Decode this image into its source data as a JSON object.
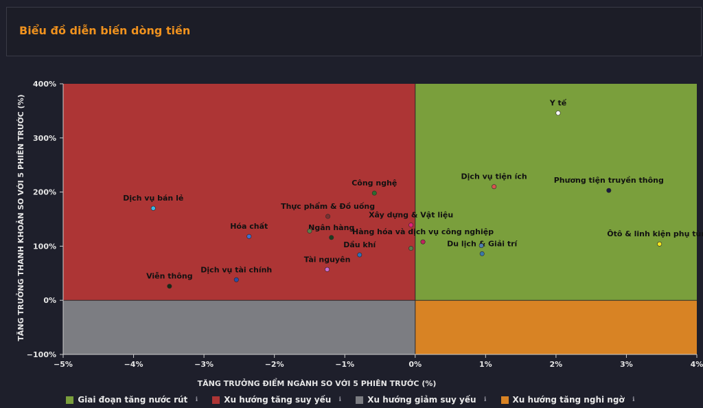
{
  "header": {
    "title": "Biểu đồ diễn biến dòng tiền"
  },
  "chart_data": {
    "type": "scatter",
    "xlabel": "TĂNG TRƯỞNG ĐIỂM NGÀNH SO VỚI 5 PHIÊN TRƯỚC (%)",
    "ylabel": "TĂNG TRƯỞNG THANH KHOẢN SO VỚI 5 PHIÊN TRƯỚC (%)",
    "xlim": [
      -5,
      4
    ],
    "ylim": [
      -100,
      400
    ],
    "x_ticks": [
      -5,
      -4,
      -3,
      -2,
      -1,
      0,
      1,
      2,
      3,
      4
    ],
    "x_tick_labels": [
      "−5%",
      "−4%",
      "−3%",
      "−2%",
      "−1%",
      "0%",
      "1%",
      "2%",
      "3%",
      "4%"
    ],
    "y_ticks": [
      -100,
      0,
      100,
      200,
      300,
      400
    ],
    "y_tick_labels": [
      "−100%",
      "0%",
      "100%",
      "200%",
      "300%",
      "400%"
    ],
    "quadrants": {
      "top_right": "#7a9f3c",
      "top_left": "#ad3535",
      "bottom_left": "#7c7d82",
      "bottom_right": "#d88324"
    },
    "points": [
      {
        "label": "Y tế",
        "x": 2.03,
        "y": 346,
        "color": "#ffffff"
      },
      {
        "label": "Dịch vụ tiện ích",
        "x": 1.12,
        "y": 210,
        "color": "#d9534f"
      },
      {
        "label": "Phương tiện truyền thông",
        "x": 2.75,
        "y": 203,
        "color": "#1a1a40"
      },
      {
        "label": "Ôtô & linh kiện phụ tùng",
        "x": 3.47,
        "y": 104,
        "color": "#f5e61e"
      },
      {
        "label": "Du lịch & Giải trí",
        "x": 0.95,
        "y": 86,
        "color": "#3a78a8"
      },
      {
        "label": "Công nghệ",
        "x": -0.58,
        "y": 198,
        "color": "#2e6b2e"
      },
      {
        "label": "Xây dựng & Vật liệu",
        "x": -0.06,
        "y": 139,
        "color": "#e0237a"
      },
      {
        "label": "Hàng hóa và dịch vụ công nghiệp",
        "x": 0.11,
        "y": 108,
        "color": "#c0245c"
      },
      {
        "label": "Thực phẩm & Đồ uống",
        "x": -1.24,
        "y": 155,
        "color": "#7a3030"
      },
      {
        "label": "Ngân hàng",
        "x": -1.19,
        "y": 116,
        "color": "#1f3d1f"
      },
      {
        "label": "Dầu khí",
        "x": -0.79,
        "y": 84,
        "color": "#2f6fb5"
      },
      {
        "label": "Tài nguyên",
        "x": -1.25,
        "y": 57,
        "color": "#c86ad0"
      },
      {
        "label": "Dịch vụ bán lẻ",
        "x": -3.72,
        "y": 170,
        "color": "#39b6e6"
      },
      {
        "label": "Hóa chất",
        "x": -2.36,
        "y": 118,
        "color": "#3f6fd1"
      },
      {
        "label": "Dịch vụ tài chính",
        "x": -2.54,
        "y": 38,
        "color": "#2a4da6"
      },
      {
        "label": "Viễn thông",
        "x": -3.49,
        "y": 26,
        "color": "#1b2a14"
      },
      {
        "label": "",
        "x": -1.5,
        "y": 128,
        "color": "#5b7d4a"
      },
      {
        "label": "",
        "x": -0.06,
        "y": 96,
        "color": "#5b7d4a"
      },
      {
        "label": "",
        "x": 0.94,
        "y": 101,
        "color": "#4d7fb0"
      }
    ],
    "legend_position": "bottom",
    "legend": [
      {
        "label": "Giai đoạn tăng nước rút",
        "color": "#7a9f3c"
      },
      {
        "label": "Xu hướng tăng suy yếu",
        "color": "#ad3535"
      },
      {
        "label": "Xu hướng giảm suy yếu",
        "color": "#7c7d82"
      },
      {
        "label": "Xu hướng tăng nghi ngờ",
        "color": "#d88324"
      }
    ]
  },
  "legend_info_icon": "info-icon"
}
